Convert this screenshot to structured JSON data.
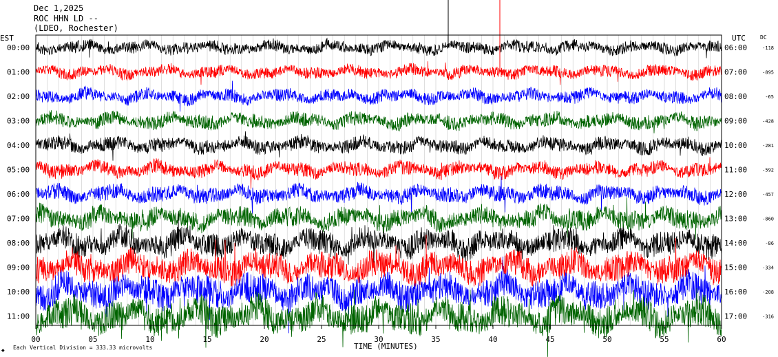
{
  "header": {
    "date": "Dec 1,2025",
    "station": "ROC HHN LD --",
    "network": "(LDEO, Rochester)"
  },
  "left_tz_label": "EST",
  "right_tz_label": "UTC",
  "dc_label": "DC",
  "footer": {
    "scale_text": "Each Vertical Division = 333.33 microvolts",
    "corner_mark": "◆"
  },
  "chart_data": {
    "type": "line",
    "xlabel": "TIME (MINUTES)",
    "xlim": [
      0,
      60
    ],
    "x_ticks": [
      "00",
      "05",
      "10",
      "15",
      "20",
      "25",
      "30",
      "35",
      "40",
      "45",
      "50",
      "55",
      "60"
    ],
    "trace_colors": [
      "#000000",
      "#ff0000",
      "#0000ff",
      "#006400"
    ],
    "rows": [
      {
        "est": "00:00",
        "utc": "06:00",
        "dc": "-118",
        "color": "#000000",
        "amplitude": 0.42
      },
      {
        "est": "01:00",
        "utc": "07:00",
        "dc": "-895",
        "color": "#ff0000",
        "amplitude": 0.42
      },
      {
        "est": "02:00",
        "utc": "08:00",
        "dc": "-65",
        "color": "#0000ff",
        "amplitude": 0.45
      },
      {
        "est": "03:00",
        "utc": "09:00",
        "dc": "-428",
        "color": "#006400",
        "amplitude": 0.5
      },
      {
        "est": "04:00",
        "utc": "10:00",
        "dc": "-281",
        "color": "#000000",
        "amplitude": 0.5
      },
      {
        "est": "05:00",
        "utc": "11:00",
        "dc": "-592",
        "color": "#ff0000",
        "amplitude": 0.5
      },
      {
        "est": "06:00",
        "utc": "12:00",
        "dc": "-457",
        "color": "#0000ff",
        "amplitude": 0.55
      },
      {
        "est": "07:00",
        "utc": "13:00",
        "dc": "-860",
        "color": "#006400",
        "amplitude": 0.7
      },
      {
        "est": "08:00",
        "utc": "14:00",
        "dc": "-86",
        "color": "#000000",
        "amplitude": 0.85
      },
      {
        "est": "09:00",
        "utc": "15:00",
        "dc": "-334",
        "color": "#ff0000",
        "amplitude": 0.95
      },
      {
        "est": "10:00",
        "utc": "16:00",
        "dc": "-208",
        "color": "#0000ff",
        "amplitude": 1.05
      },
      {
        "est": "11:00",
        "utc": "17:00",
        "dc": "-316",
        "color": "#006400",
        "amplitude": 1.1
      }
    ]
  }
}
